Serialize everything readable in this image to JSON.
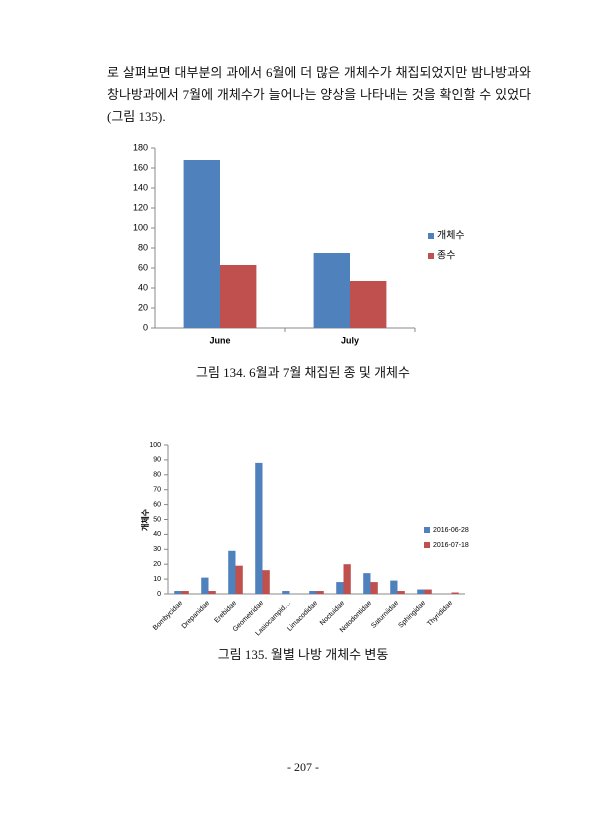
{
  "paragraph": "로 살펴보면 대부분의 과에서 6월에 더 많은 개체수가 채집되었지만 밤나방과와 창나방과에서 7월에 개체수가 늘어나는 양상을 나타내는 것을 확인할 수 있었다(그림 135).",
  "chart_data": [
    {
      "type": "bar",
      "caption": "그림 134.  6월과 7월 채집된 종 및 개체수",
      "categories": [
        "June",
        "July"
      ],
      "series": [
        {
          "name": "개체수",
          "color": "#4f81bd",
          "values": [
            168,
            75
          ]
        },
        {
          "name": "종수",
          "color": "#c0504d",
          "values": [
            63,
            47
          ]
        }
      ],
      "ylim": [
        0,
        180
      ],
      "yticks": [
        0,
        20,
        40,
        60,
        80,
        100,
        120,
        140,
        160,
        180
      ],
      "legend": "right"
    },
    {
      "type": "bar",
      "caption": "그림 135. 월별 나방 개체수 변동",
      "y_label": "개체수",
      "categories": [
        "Bombycidae",
        "Drepanidae",
        "Erebidae",
        "Geometridae",
        "Lasiocampid…",
        "Limacodidae",
        "Noctuidae",
        "Notodontidae",
        "Saturniidae",
        "Sphingidae",
        "Thyrididae"
      ],
      "series": [
        {
          "name": "2016-06-28",
          "color": "#4f81bd",
          "values": [
            2,
            11,
            29,
            88,
            2,
            2,
            8,
            14,
            9,
            3,
            0
          ]
        },
        {
          "name": "2016-07-18",
          "color": "#c0504d",
          "values": [
            2,
            2,
            19,
            16,
            0,
            2,
            20,
            8,
            2,
            3,
            1
          ]
        }
      ],
      "ylim": [
        0,
        100
      ],
      "yticks": [
        0,
        10,
        20,
        30,
        40,
        50,
        60,
        70,
        80,
        90,
        100
      ],
      "legend": "right"
    }
  ],
  "page_number": "- 207 -"
}
